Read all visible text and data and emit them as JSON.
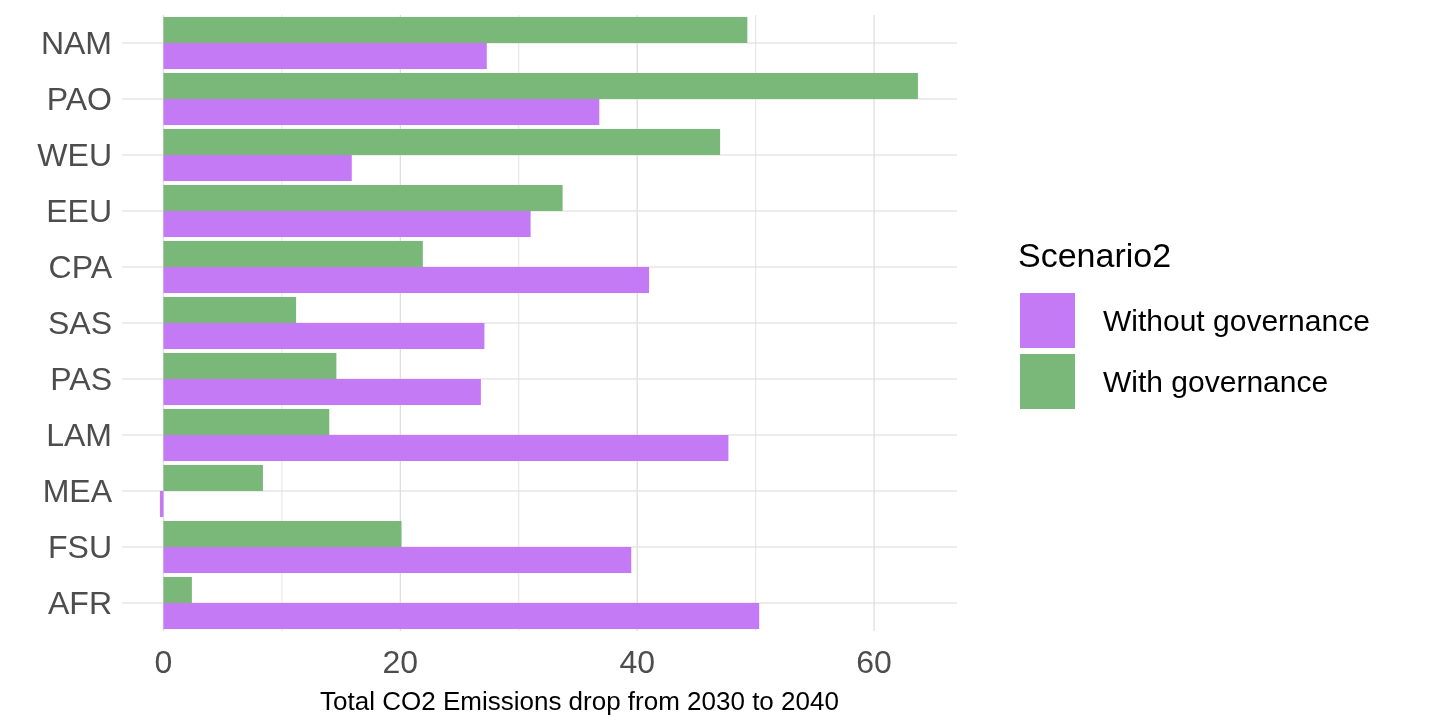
{
  "chart_data": {
    "type": "bar",
    "orientation": "horizontal",
    "xlabel": "Total CO2 Emissions drop from 2030 to 2040",
    "legend_title": "Scenario2",
    "categories": [
      "NAM",
      "PAO",
      "WEU",
      "EEU",
      "CPA",
      "SAS",
      "PAS",
      "LAM",
      "MEA",
      "FSU",
      "AFR"
    ],
    "series": [
      {
        "name": "Without governance",
        "color": "#c57af5",
        "values": [
          27.3,
          36.8,
          15.9,
          31.0,
          41.0,
          27.1,
          26.8,
          47.7,
          -0.3,
          39.5,
          50.3
        ]
      },
      {
        "name": "With governance",
        "color": "#7ab87a",
        "values": [
          49.3,
          63.7,
          47.0,
          33.7,
          21.9,
          11.2,
          14.6,
          14.0,
          8.4,
          20.1,
          2.4
        ]
      }
    ],
    "xlim": [
      -3.5,
      67
    ],
    "xticks": [
      0,
      {
        "value": 10,
        "label": null
      },
      20,
      {
        "value": 30,
        "label": null
      },
      40,
      {
        "value": 50,
        "label": null
      },
      60
    ],
    "grid": true,
    "legend": "right"
  }
}
